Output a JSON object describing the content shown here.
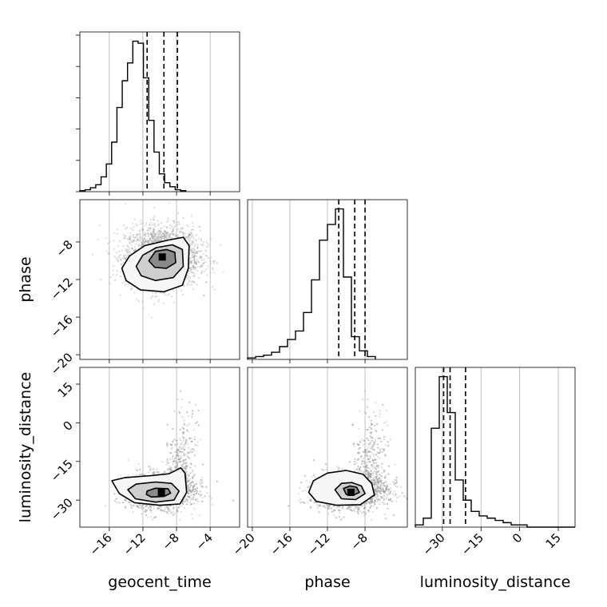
{
  "chart_data": {
    "type": "corner",
    "parameters": [
      "geocent_time",
      "phase",
      "luminosity_distance"
    ],
    "axis_ranges": {
      "geocent_time": [
        -19.5,
        -0.5
      ],
      "phase": [
        -20.5,
        -3.5
      ],
      "luminosity_distance": [
        -40.5,
        21.5
      ]
    },
    "ticks": {
      "geocent_time": [
        -16,
        -12,
        -8,
        -4
      ],
      "phase": [
        -20,
        -16,
        -12,
        -8
      ],
      "luminosity_distance": [
        -30,
        -15,
        0,
        15
      ]
    },
    "grid": true,
    "histograms": [
      {
        "parameter": "geocent_time",
        "bins_start": -19.5,
        "bin_width": 0.63,
        "counts": [
          1,
          2,
          4,
          7,
          15,
          28,
          50,
          85,
          112,
          130,
          152,
          150,
          115,
          72,
          40,
          18,
          9,
          5,
          2,
          1
        ],
        "quantiles": [
          -11.5,
          -9.5,
          -7.9
        ]
      },
      {
        "parameter": "phase",
        "bins_start": -20.5,
        "bin_width": 0.85,
        "counts": [
          1,
          2,
          3,
          5,
          9,
          14,
          20,
          33,
          56,
          84,
          95,
          106,
          58,
          16,
          6,
          2
        ],
        "quantiles": [
          -10.8,
          -9.1,
          -8.0
        ]
      },
      {
        "parameter": "luminosity_distance",
        "bins_start": -40.5,
        "bin_width": 3.1,
        "counts": [
          1,
          4,
          44,
          67,
          51,
          21,
          12,
          7,
          5,
          4,
          3,
          2,
          1,
          1,
          0,
          0,
          0,
          0,
          0,
          0
        ],
        "quantiles": [
          -29.5,
          -27.0,
          -21.0
        ]
      }
    ],
    "pairs": [
      {
        "x": "geocent_time",
        "y": "phase",
        "center": [
          -9.7,
          -9.6
        ],
        "spread": [
          2.2,
          1.6
        ],
        "contour_rings": [
          [
            [
              -14.5,
              -10.8
            ],
            [
              -13.6,
              -9.5
            ],
            [
              -11.8,
              -8.4
            ],
            [
              -9.0,
              -7.8
            ],
            [
              -7.2,
              -7.5
            ],
            [
              -6.5,
              -8.4
            ],
            [
              -6.6,
              -10.8
            ],
            [
              -7.3,
              -12.6
            ],
            [
              -9.5,
              -13.3
            ],
            [
              -12.3,
              -13.1
            ],
            [
              -14.0,
              -12.1
            ]
          ],
          [
            [
              -12.8,
              -10.6
            ],
            [
              -12.0,
              -9.4
            ],
            [
              -10.4,
              -8.6
            ],
            [
              -8.5,
              -8.3
            ],
            [
              -7.3,
              -8.8
            ],
            [
              -7.2,
              -10.6
            ],
            [
              -8.4,
              -11.8
            ],
            [
              -10.5,
              -12.1
            ],
            [
              -12.2,
              -11.6
            ]
          ],
          [
            [
              -11.3,
              -10.0
            ],
            [
              -10.5,
              -9.0
            ],
            [
              -9.2,
              -8.8
            ],
            [
              -8.2,
              -9.1
            ],
            [
              -8.1,
              -10.2
            ],
            [
              -9.2,
              -10.8
            ],
            [
              -10.6,
              -10.7
            ]
          ]
        ]
      },
      {
        "x": "geocent_time",
        "y": "luminosity_distance",
        "center": [
          -9.8,
          -27.0
        ],
        "spread": [
          2.0,
          3.5
        ],
        "contour_rings": [
          [
            [
              -15.7,
              -22.5
            ],
            [
              -14.2,
              -21.3
            ],
            [
              -11.0,
              -20.5
            ],
            [
              -8.9,
              -19.8
            ],
            [
              -7.5,
              -17.5
            ],
            [
              -7.0,
              -19.5
            ],
            [
              -6.8,
              -27.0
            ],
            [
              -7.6,
              -31.5
            ],
            [
              -10.0,
              -32.0
            ],
            [
              -13.0,
              -31.0
            ],
            [
              -14.8,
              -27.5
            ]
          ],
          [
            [
              -13.8,
              -26.0
            ],
            [
              -12.8,
              -23.8
            ],
            [
              -10.5,
              -23.0
            ],
            [
              -8.6,
              -23.5
            ],
            [
              -7.7,
              -26.5
            ],
            [
              -8.3,
              -30.0
            ],
            [
              -10.5,
              -30.8
            ],
            [
              -12.9,
              -29.5
            ]
          ],
          [
            [
              -11.5,
              -26.5
            ],
            [
              -10.5,
              -25.4
            ],
            [
              -9.0,
              -25.6
            ],
            [
              -8.7,
              -27.3
            ],
            [
              -9.5,
              -28.6
            ],
            [
              -11.0,
              -28.8
            ],
            [
              -11.6,
              -27.8
            ]
          ]
        ]
      },
      {
        "x": "phase",
        "y": "luminosity_distance",
        "center": [
          -9.5,
          -27.0
        ],
        "spread": [
          2.0,
          3.5
        ],
        "contour_rings": [
          [
            [
              -14.0,
              -27.0
            ],
            [
              -13.5,
              -22.5
            ],
            [
              -12.0,
              -19.5
            ],
            [
              -10.0,
              -18.5
            ],
            [
              -8.2,
              -20.0
            ],
            [
              -7.3,
              -23.5
            ],
            [
              -7.0,
              -28.0
            ],
            [
              -8.5,
              -31.8
            ],
            [
              -11.0,
              -32.0
            ],
            [
              -13.2,
              -30.5
            ]
          ],
          [
            [
              -11.2,
              -26.0
            ],
            [
              -10.5,
              -23.5
            ],
            [
              -9.4,
              -23.2
            ],
            [
              -8.4,
              -24.5
            ],
            [
              -8.0,
              -27.5
            ],
            [
              -9.0,
              -29.8
            ],
            [
              -10.5,
              -29.5
            ]
          ],
          [
            [
              -10.3,
              -25.5
            ],
            [
              -9.6,
              -24.5
            ],
            [
              -8.9,
              -25.0
            ],
            [
              -8.6,
              -27.0
            ],
            [
              -9.2,
              -28.0
            ],
            [
              -10.0,
              -27.8
            ]
          ]
        ]
      }
    ]
  }
}
